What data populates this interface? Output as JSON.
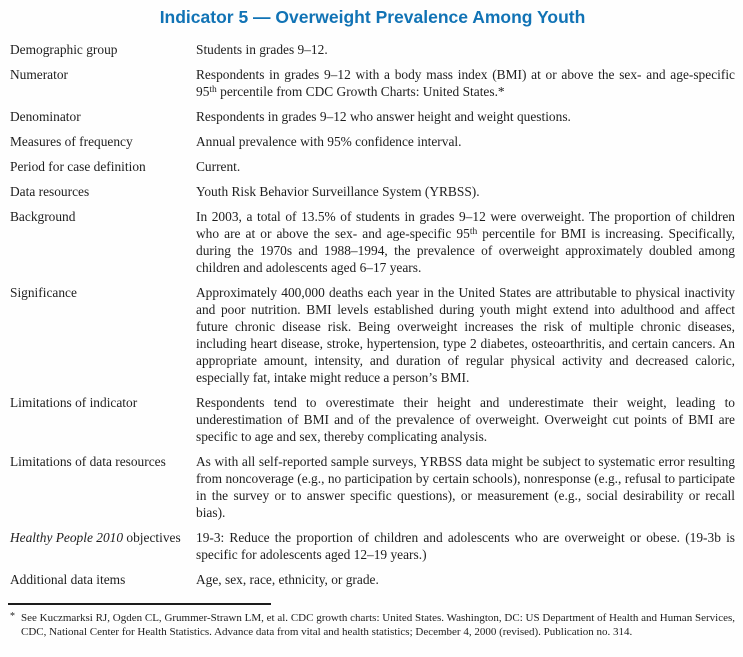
{
  "page": {
    "title": "Indicator 5 — Overweight Prevalence Among Youth",
    "title_color": "#1173b5",
    "text_color": "#1e1e1e",
    "background_color": "#fefefe"
  },
  "table": {
    "rows": [
      {
        "label": "Demographic group",
        "value": "Students in grades 9–12."
      },
      {
        "label": "Numerator",
        "value_pre": "Respondents in grades 9–12 with a body mass index (BMI) at or above the sex- and age-specific 95",
        "value_sup": "th",
        "value_post": " percentile from CDC Growth Charts: United States.*"
      },
      {
        "label": "Denominator",
        "value": "Respondents in grades 9–12 who answer height and weight questions."
      },
      {
        "label": "Measures of frequency",
        "value": "Annual prevalence with 95% confidence interval."
      },
      {
        "label": "Period for case definition",
        "value": "Current."
      },
      {
        "label": "Data resources",
        "value": "Youth Risk Behavior Surveillance System (YRBSS)."
      },
      {
        "label": "Background",
        "value_pre": "In 2003, a total of 13.5% of students in grades 9–12 were overweight. The proportion of children who are at or above the sex- and age-specific 95",
        "value_sup": "th",
        "value_post": " percentile for BMI is increasing. Specifically, during the 1970s and 1988–1994, the prevalence of overweight approximately doubled among children and adolescents aged 6–17 years."
      },
      {
        "label": "Significance",
        "value": "Approximately 400,000 deaths each year in the United States are attributable to physical inactivity and poor nutrition. BMI levels established during youth might extend into adulthood and affect future chronic disease risk. Being overweight increases the risk of multiple chronic diseases, including heart disease, stroke, hypertension, type 2 diabetes, osteoarthritis, and certain cancers. An appropriate amount, intensity, and duration of regular physical activity and decreased caloric, especially fat, intake might reduce a person’s BMI."
      },
      {
        "label": "Limitations of indicator",
        "value": "Respondents tend to overestimate their height and underestimate their weight, leading to underestimation of BMI and of the prevalence of overweight. Overweight cut points of BMI are specific to age and sex, thereby complicating analysis."
      },
      {
        "label": "Limitations of data resources",
        "value": "As with all self-reported sample surveys, YRBSS data might be subject to systematic error resulting from noncoverage (e.g., no participation by certain schools), nonresponse (e.g., refusal to participate in the survey or to answer specific questions), or measurement (e.g., social desirability or recall bias)."
      },
      {
        "label_italic": "Healthy People 2010",
        "label_rest": " objectives",
        "value": "19-3: Reduce the proportion of children and adolescents who are overweight or obese. (19-3b is specific for adolescents aged 12–19 years.)"
      },
      {
        "label": "Additional data items",
        "value": "Age, sex, race, ethnicity, or grade."
      }
    ]
  },
  "footnote": {
    "marker": "*",
    "text": "See Kuczmarksi RJ, Ogden CL, Grummer-Strawn LM, et al. CDC growth charts: United States. Washington, DC: US Department of Health and Human Services, CDC, National Center for Health Statistics. Advance data from vital and health statistics; December 4, 2000 (revised). Publication no. 314."
  }
}
